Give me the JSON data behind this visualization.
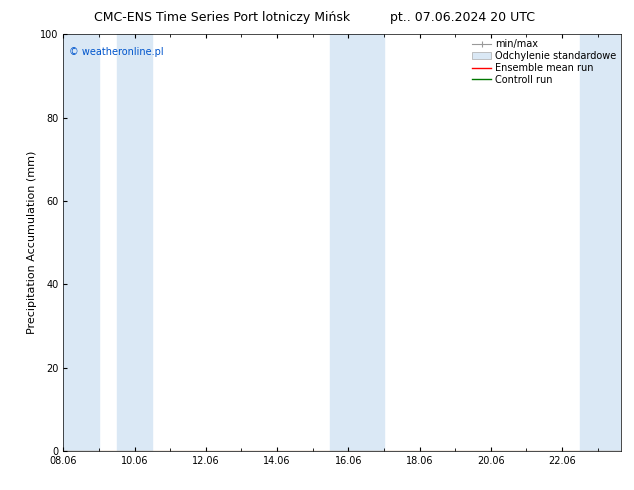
{
  "title_left": "CMC-ENS Time Series Port lotniczy Mińsk",
  "title_right": "pt.. 07.06.2024 20 UTC",
  "ylabel": "Precipitation Accumulation (mm)",
  "watermark": "© weatheronline.pl",
  "watermark_color": "#0055cc",
  "ylim": [
    0,
    100
  ],
  "yticks": [
    0,
    20,
    40,
    60,
    80,
    100
  ],
  "x_min": 8.0,
  "x_max": 23.667,
  "xtick_labels": [
    "08.06",
    "10.06",
    "12.06",
    "14.06",
    "16.06",
    "18.06",
    "20.06",
    "22.06"
  ],
  "xtick_positions": [
    8,
    10,
    12,
    14,
    16,
    18,
    20,
    22
  ],
  "background_color": "#ffffff",
  "plot_bg_color": "#ffffff",
  "band_color": "#dae8f5",
  "shaded_bands": [
    {
      "start": 8.0,
      "end": 9.0
    },
    {
      "start": 9.5,
      "end": 10.5
    },
    {
      "start": 15.5,
      "end": 17.0
    },
    {
      "start": 22.5,
      "end": 23.667
    }
  ],
  "legend_labels": [
    "min/max",
    "Odchylenie standardowe",
    "Ensemble mean run",
    "Controll run"
  ],
  "legend_colors": [
    "#999999",
    "#c8dcea",
    "#ff0000",
    "#007700"
  ],
  "title_fontsize": 9,
  "axis_label_fontsize": 8,
  "tick_fontsize": 7,
  "watermark_fontsize": 7,
  "legend_fontsize": 7
}
